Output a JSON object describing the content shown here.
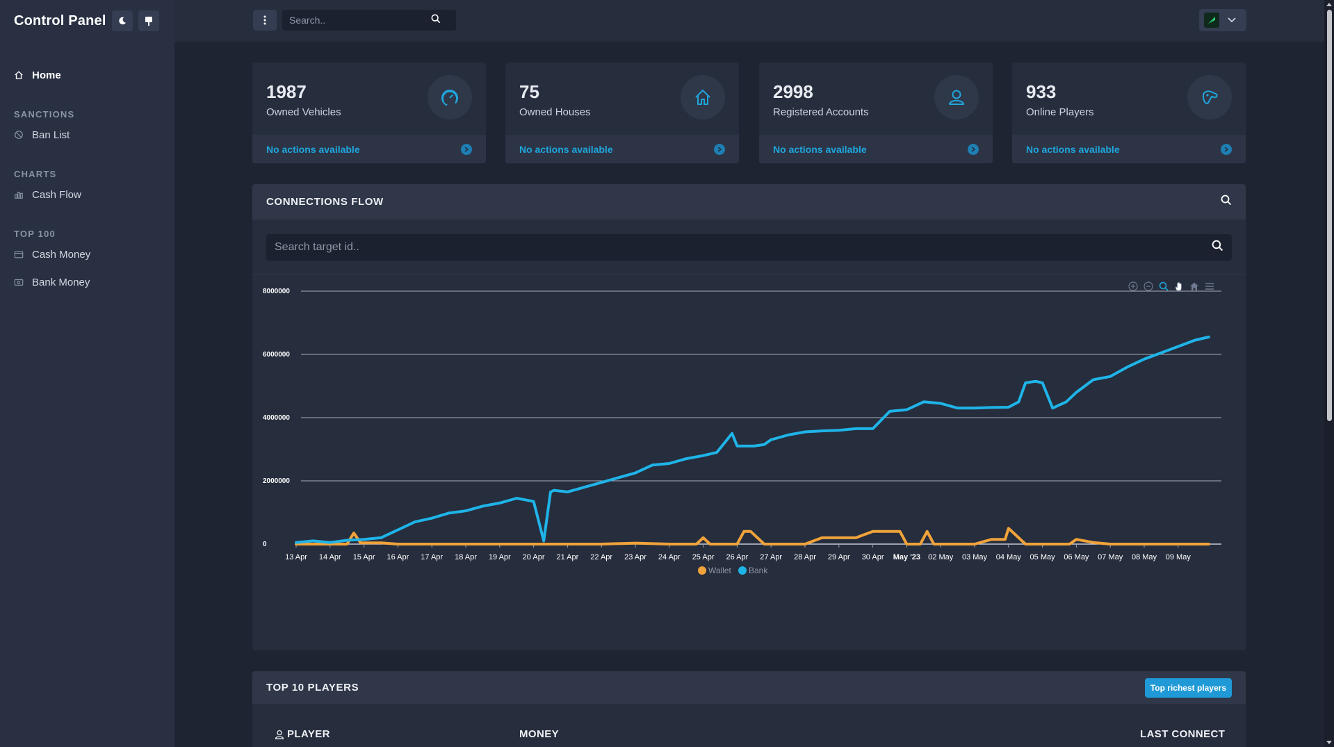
{
  "app": {
    "title": "Control Panel"
  },
  "sidebar": {
    "home": "Home",
    "sections": [
      {
        "title": "SANCTIONS",
        "items": [
          "Ban List"
        ]
      },
      {
        "title": "CHARTS",
        "items": [
          "Cash Flow"
        ]
      },
      {
        "title": "TOP 100",
        "items": [
          "Cash Money",
          "Bank Money"
        ]
      }
    ]
  },
  "topbar": {
    "search_placeholder": "Search.."
  },
  "stats": [
    {
      "value": "1987",
      "label": "Owned Vehicles",
      "action": "No actions available",
      "icon": "speedometer-icon"
    },
    {
      "value": "75",
      "label": "Owned Houses",
      "action": "No actions available",
      "icon": "house-icon"
    },
    {
      "value": "2998",
      "label": "Registered Accounts",
      "action": "No actions available",
      "icon": "user-icon"
    },
    {
      "value": "933",
      "label": "Online Players",
      "action": "No actions available",
      "icon": "gamepad-icon"
    }
  ],
  "connections": {
    "title": "CONNECTIONS FLOW",
    "search_placeholder": "Search target id.."
  },
  "top_players": {
    "title": "TOP 10 PLAYERS",
    "button": "Top richest players",
    "columns": [
      "PLAYER",
      "MONEY",
      "LAST CONNECT"
    ]
  },
  "colors": {
    "bank": "#1fb4e8",
    "wallet": "#f0a33a",
    "accent": "#1f9ad6"
  },
  "chart_data": {
    "type": "line",
    "x_ticks": [
      "13 Apr",
      "14 Apr",
      "15 Apr",
      "16 Apr",
      "17 Apr",
      "18 Apr",
      "19 Apr",
      "20 Apr",
      "21 Apr",
      "22 Apr",
      "23 Apr",
      "24 Apr",
      "25 Apr",
      "26 Apr",
      "27 Apr",
      "28 Apr",
      "29 Apr",
      "30 Apr",
      "May '23",
      "02 May",
      "03 May",
      "04 May",
      "05 May",
      "06 May",
      "07 May",
      "08 May",
      "09 May"
    ],
    "y_ticks": [
      "0",
      "2000000",
      "4000000",
      "6000000",
      "8000000"
    ],
    "ylim": [
      0,
      8000000
    ],
    "legend": [
      "Wallet",
      "Bank"
    ],
    "legend_position": "bottom",
    "grid": true,
    "series": [
      {
        "name": "Bank",
        "x": [
          0,
          0.5,
          1,
          1.5,
          2,
          2.5,
          3,
          3.5,
          4,
          4.5,
          5,
          5.5,
          6,
          6.5,
          7,
          7.3,
          7.5,
          7.6,
          8,
          8.5,
          9,
          9.5,
          10,
          10.5,
          11,
          11.5,
          12,
          12.4,
          12.85,
          13,
          13.5,
          13.8,
          14,
          14.5,
          15,
          15.5,
          16,
          16.5,
          17,
          17.5,
          18,
          18.5,
          19,
          19.5,
          20,
          20.5,
          21,
          21.3,
          21.5,
          21.8,
          22,
          22.3,
          22.7,
          23,
          23.5,
          24,
          24.5,
          25,
          25.5,
          26,
          26.5,
          26.9
        ],
        "y": [
          50000,
          100000,
          50000,
          120000,
          150000,
          200000,
          450000,
          700000,
          820000,
          980000,
          1050000,
          1200000,
          1300000,
          1450000,
          1350000,
          100000,
          1650000,
          1700000,
          1650000,
          1800000,
          1950000,
          2100000,
          2250000,
          2500000,
          2550000,
          2700000,
          2800000,
          2900000,
          3500000,
          3100000,
          3100000,
          3150000,
          3300000,
          3450000,
          3550000,
          3580000,
          3600000,
          3650000,
          3650000,
          4200000,
          4250000,
          4500000,
          4450000,
          4300000,
          4300000,
          4320000,
          4330000,
          4500000,
          5100000,
          5150000,
          5100000,
          4300000,
          4500000,
          4800000,
          5200000,
          5300000,
          5600000,
          5850000,
          6050000,
          6250000,
          6450000,
          6550000
        ]
      },
      {
        "name": "Wallet",
        "x": [
          0,
          1.5,
          1.7,
          1.9,
          2.5,
          3,
          4,
          5,
          6,
          7,
          8,
          9,
          10,
          11,
          11.8,
          12,
          12.2,
          13,
          13.2,
          13.4,
          13.8,
          14,
          14.2,
          14.6,
          15,
          15.5,
          16,
          16.5,
          17,
          17.5,
          17.8,
          18,
          18.4,
          18.6,
          18.8,
          19,
          19.5,
          20,
          20.5,
          20.9,
          21,
          21.2,
          21.5,
          22,
          22.5,
          22.8,
          23,
          23.5,
          24,
          25,
          26,
          26.9
        ],
        "y": [
          0,
          0,
          350000,
          40000,
          40000,
          0,
          0,
          0,
          0,
          0,
          0,
          0,
          30000,
          0,
          0,
          200000,
          0,
          0,
          400000,
          400000,
          0,
          0,
          0,
          0,
          0,
          200000,
          200000,
          200000,
          400000,
          400000,
          400000,
          0,
          0,
          400000,
          0,
          0,
          0,
          0,
          150000,
          150000,
          500000,
          300000,
          0,
          0,
          0,
          0,
          150000,
          50000,
          0,
          0,
          0,
          0
        ]
      }
    ]
  }
}
